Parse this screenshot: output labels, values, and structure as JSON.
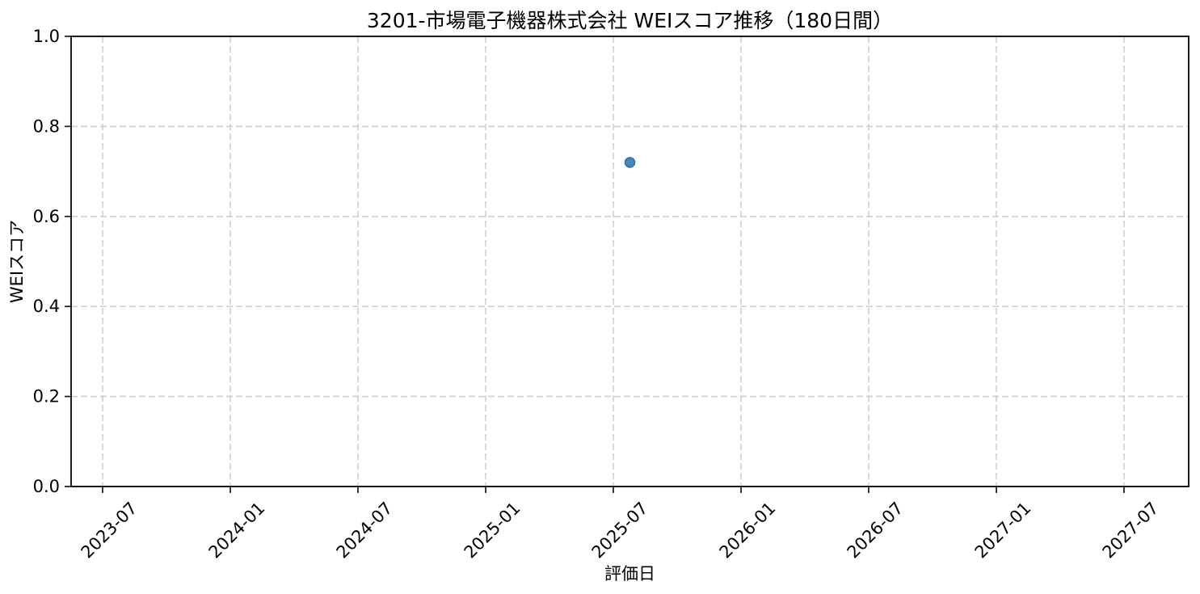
{
  "chart_data": {
    "type": "scatter",
    "title": "3201-市場電子機器株式会社 WEIスコア推移（180日間）",
    "xlabel": "評価日",
    "ylabel": "WEIスコア",
    "x_tick_labels": [
      "2023-07",
      "2024-01",
      "2024-07",
      "2025-01",
      "2025-07",
      "2026-01",
      "2026-07",
      "2027-01",
      "2027-07"
    ],
    "y_ticks": [
      0.0,
      0.2,
      0.4,
      0.6,
      0.8,
      1.0
    ],
    "ylim": [
      0.0,
      1.0
    ],
    "grid": "dashed",
    "legend": "none",
    "series": [
      {
        "name": "WEIスコア",
        "points": [
          {
            "date_est": "2025-07",
            "x_frac": 0.5,
            "y": 0.72
          }
        ]
      }
    ],
    "colors": {
      "marker_fill": "#4189c0",
      "marker_edge": "#2d6ea6",
      "grid": "#cfcfcf",
      "spine": "#1a1a1a",
      "tick": "#1a1a1a",
      "text": "#000000",
      "background": "#ffffff"
    }
  }
}
